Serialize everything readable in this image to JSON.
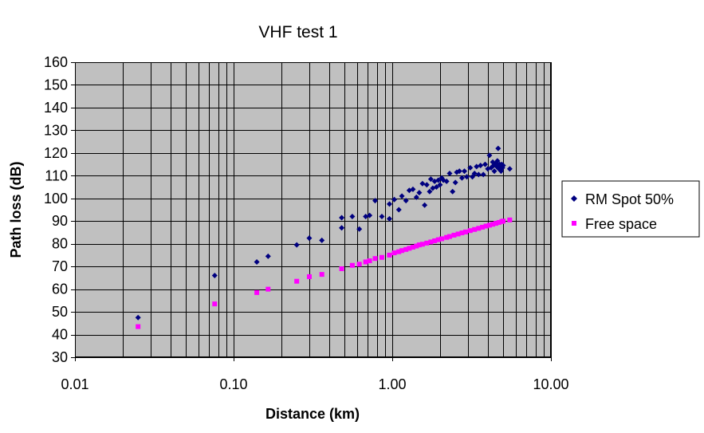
{
  "chart_data": {
    "type": "scatter",
    "title": "VHF test 1",
    "xlabel": "Distance (km)",
    "ylabel": "Path loss (dB)",
    "xscale": "log",
    "xlim": [
      0.01,
      10
    ],
    "ylim": [
      30,
      160
    ],
    "x_tick_labels": [
      "0.01",
      "0.10",
      "1.00",
      "10.00"
    ],
    "y_tick_labels": [
      "30",
      "40",
      "50",
      "60",
      "70",
      "80",
      "90",
      "100",
      "110",
      "120",
      "130",
      "140",
      "150",
      "160"
    ],
    "grid": true,
    "plot_background": "#c0c0c0",
    "legend_position": "right",
    "series": [
      {
        "name": "RM Spot 50%",
        "marker": "diamond",
        "color": "#000080",
        "points": [
          [
            0.025,
            47.5
          ],
          [
            0.076,
            66
          ],
          [
            0.14,
            72
          ],
          [
            0.165,
            74.5
          ],
          [
            0.25,
            79.5
          ],
          [
            0.3,
            82.5
          ],
          [
            0.36,
            81.5
          ],
          [
            0.48,
            87
          ],
          [
            0.48,
            91.5
          ],
          [
            0.56,
            92
          ],
          [
            0.62,
            86.5
          ],
          [
            0.68,
            92
          ],
          [
            0.72,
            92.5
          ],
          [
            0.78,
            99
          ],
          [
            0.86,
            92
          ],
          [
            0.96,
            91
          ],
          [
            0.96,
            97.5
          ],
          [
            1.03,
            99.5
          ],
          [
            1.1,
            95
          ],
          [
            1.15,
            101
          ],
          [
            1.22,
            99
          ],
          [
            1.28,
            103.5
          ],
          [
            1.35,
            104
          ],
          [
            1.42,
            100.5
          ],
          [
            1.48,
            102.5
          ],
          [
            1.55,
            106.5
          ],
          [
            1.6,
            97
          ],
          [
            1.65,
            106
          ],
          [
            1.72,
            103
          ],
          [
            1.75,
            108.5
          ],
          [
            1.8,
            104.5
          ],
          [
            1.85,
            107.5
          ],
          [
            1.9,
            105
          ],
          [
            1.95,
            108
          ],
          [
            2.0,
            106
          ],
          [
            2.05,
            109
          ],
          [
            2.1,
            108
          ],
          [
            2.2,
            107.5
          ],
          [
            2.3,
            111
          ],
          [
            2.4,
            103
          ],
          [
            2.5,
            107
          ],
          [
            2.55,
            111.5
          ],
          [
            2.65,
            112
          ],
          [
            2.75,
            109
          ],
          [
            2.85,
            112
          ],
          [
            2.95,
            109.5
          ],
          [
            3.1,
            113.5
          ],
          [
            3.2,
            109.5
          ],
          [
            3.3,
            111
          ],
          [
            3.4,
            114
          ],
          [
            3.5,
            110.5
          ],
          [
            3.6,
            114.5
          ],
          [
            3.75,
            110.5
          ],
          [
            3.85,
            115
          ],
          [
            4.0,
            113
          ],
          [
            4.1,
            119
          ],
          [
            4.2,
            113.5
          ],
          [
            4.3,
            116
          ],
          [
            4.35,
            114.5
          ],
          [
            4.4,
            112
          ],
          [
            4.45,
            115
          ],
          [
            4.5,
            115.5
          ],
          [
            4.55,
            114
          ],
          [
            4.6,
            116.5
          ],
          [
            4.65,
            122
          ],
          [
            4.7,
            113
          ],
          [
            4.75,
            115
          ],
          [
            4.8,
            114
          ],
          [
            4.85,
            112
          ],
          [
            4.9,
            115
          ],
          [
            4.95,
            113.5
          ],
          [
            5.0,
            114.5
          ],
          [
            5.5,
            113
          ]
        ]
      },
      {
        "name": "Free space",
        "marker": "square",
        "color": "#ff00ff",
        "points": [
          [
            0.025,
            43.5
          ],
          [
            0.076,
            53.5
          ],
          [
            0.14,
            58.5
          ],
          [
            0.165,
            60
          ],
          [
            0.25,
            63.5
          ],
          [
            0.3,
            65.5
          ],
          [
            0.36,
            66.5
          ],
          [
            0.48,
            69
          ],
          [
            0.56,
            70.5
          ],
          [
            0.62,
            71
          ],
          [
            0.68,
            72
          ],
          [
            0.72,
            72.5
          ],
          [
            0.78,
            73.5
          ],
          [
            0.86,
            74
          ],
          [
            0.96,
            75
          ],
          [
            1.03,
            76
          ],
          [
            1.1,
            76.5
          ],
          [
            1.15,
            77
          ],
          [
            1.22,
            77.5
          ],
          [
            1.28,
            78
          ],
          [
            1.35,
            78.5
          ],
          [
            1.42,
            79
          ],
          [
            1.48,
            79.5
          ],
          [
            1.55,
            79.8
          ],
          [
            1.65,
            80.3
          ],
          [
            1.75,
            80.8
          ],
          [
            1.85,
            81.3
          ],
          [
            1.95,
            81.8
          ],
          [
            2.05,
            82.2
          ],
          [
            2.2,
            82.8
          ],
          [
            2.3,
            83.2
          ],
          [
            2.45,
            83.8
          ],
          [
            2.6,
            84.3
          ],
          [
            2.75,
            84.8
          ],
          [
            2.9,
            85.2
          ],
          [
            3.1,
            85.8
          ],
          [
            3.3,
            86.3
          ],
          [
            3.5,
            86.8
          ],
          [
            3.7,
            87.3
          ],
          [
            3.9,
            87.8
          ],
          [
            4.1,
            88.2
          ],
          [
            4.3,
            88.6
          ],
          [
            4.5,
            89
          ],
          [
            4.7,
            89.4
          ],
          [
            4.9,
            89.8
          ],
          [
            5.0,
            90
          ],
          [
            5.5,
            90.5
          ]
        ]
      }
    ]
  }
}
